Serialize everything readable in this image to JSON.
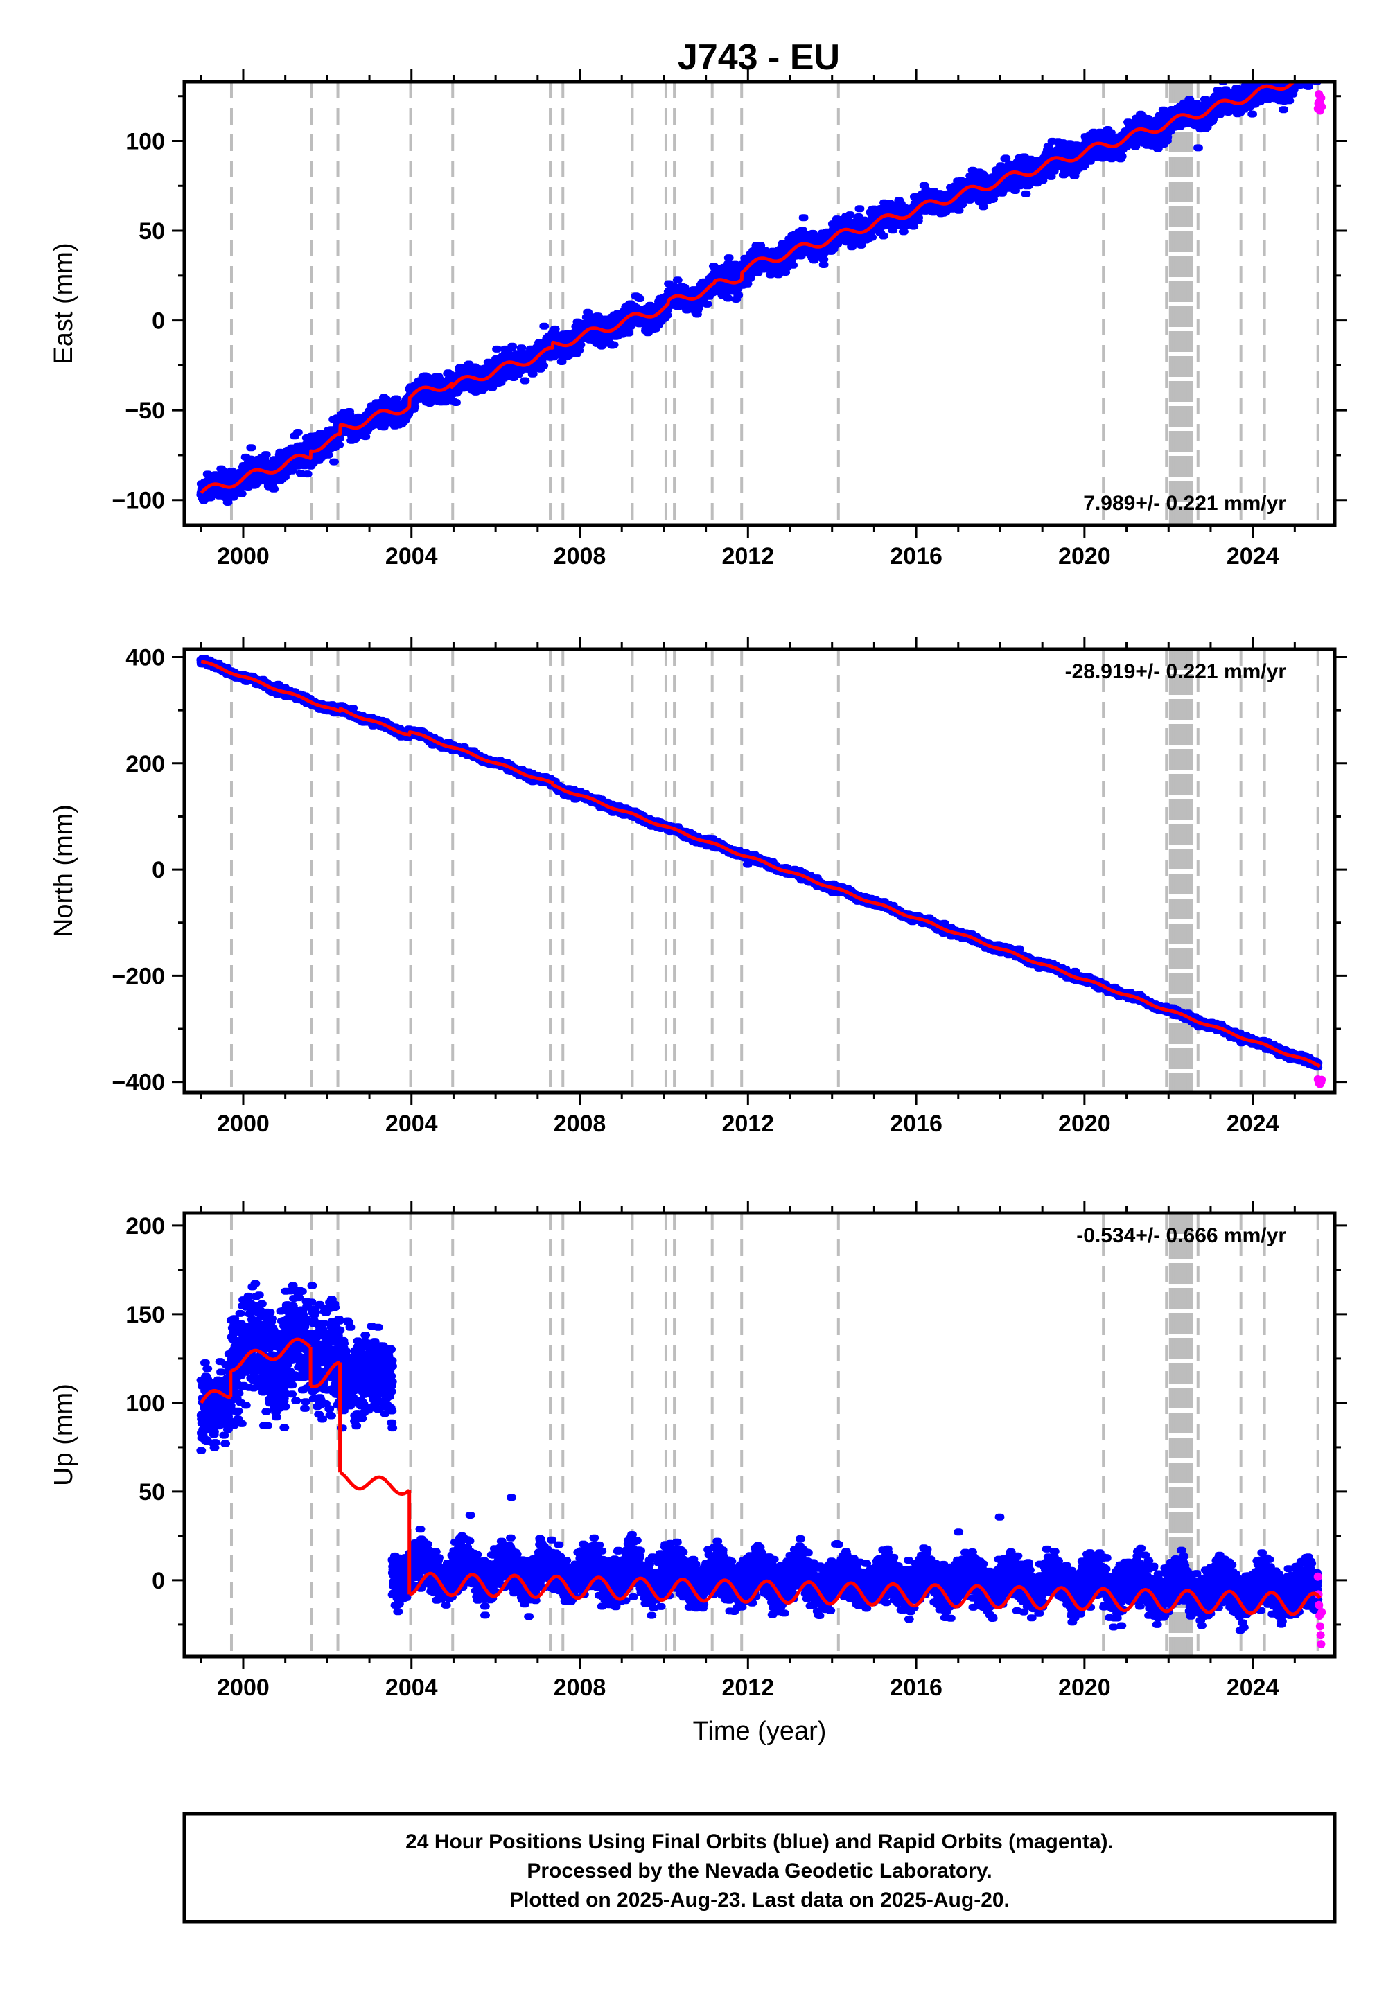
{
  "title": "J743 - EU",
  "footer": {
    "line1": "24 Hour Positions Using Final Orbits (blue) and Rapid Orbits (magenta).",
    "line2": "Processed by the Nevada Geodetic Laboratory.",
    "line3": "Plotted on 2025-Aug-23. Last data on 2025-Aug-20."
  },
  "colors": {
    "final_orbits": "#0000ff",
    "rapid_orbits": "#ff00ff",
    "model_fit": "#ff0000",
    "event_lines": "#bdbdbd",
    "axes": "#000000"
  },
  "chart_data": [
    {
      "type": "scatter",
      "panel": "east",
      "ylabel": "East (mm)",
      "xlabel": "",
      "xlim": [
        1998.6,
        2025.95
      ],
      "ylim": [
        -114,
        133
      ],
      "x_ticks": [
        2000,
        2004,
        2008,
        2012,
        2016,
        2020,
        2024
      ],
      "y_ticks": [
        -100,
        -50,
        0,
        50,
        100
      ],
      "y_tick_labels": [
        "−100",
        "−50",
        "0",
        "50",
        "100"
      ],
      "rate_label": "7.989+/- 0.221 mm/yr",
      "rate_position": "bottom-right",
      "grid": false,
      "series": [
        {
          "kind": "final_orbits",
          "t_start": 1999.0,
          "t_end": 2025.55,
          "velocity_mm_yr": 7.989,
          "value_at_2000": -88,
          "seasonal_amplitude_mm": 2.5,
          "scatter_mm": 3.5,
          "steps": [
            [
              2001.6,
              4
            ],
            [
              2002.3,
              5
            ],
            [
              2003.95,
              5
            ],
            [
              2004.95,
              -2
            ],
            [
              2007.35,
              3
            ],
            [
              2009.3,
              0
            ],
            [
              2010.1,
              2
            ],
            [
              2011.2,
              1
            ],
            [
              2011.85,
              4
            ],
            [
              2014.2,
              0
            ],
            [
              2020.45,
              0
            ],
            [
              2022.0,
              0
            ],
            [
              2022.7,
              0
            ],
            [
              2023.7,
              0
            ],
            [
              2024.3,
              0
            ]
          ]
        },
        {
          "kind": "rapid_orbits",
          "t_start": 2025.55,
          "t_end": 2025.64,
          "values_mm": [
            118,
            121,
            126,
            122,
            117,
            120,
            124,
            119
          ]
        },
        {
          "kind": "model_fit",
          "line_width": 5
        }
      ]
    },
    {
      "type": "scatter",
      "panel": "north",
      "ylabel": "North (mm)",
      "xlabel": "",
      "xlim": [
        1998.6,
        2025.95
      ],
      "ylim": [
        -420,
        415
      ],
      "x_ticks": [
        2000,
        2004,
        2008,
        2012,
        2016,
        2020,
        2024
      ],
      "y_ticks": [
        -400,
        -200,
        0,
        200,
        400
      ],
      "y_tick_labels": [
        "−400",
        "−200",
        "0",
        "200",
        "400"
      ],
      "rate_label": "-28.919+/- 0.221 mm/yr",
      "rate_position": "top-right",
      "grid": false,
      "series": [
        {
          "kind": "final_orbits",
          "t_start": 1999.0,
          "t_end": 2025.55,
          "velocity_mm_yr": -28.919,
          "value_at_2000": 363,
          "seasonal_amplitude_mm": 2,
          "scatter_mm": 3,
          "steps": [
            [
              2002.3,
              5
            ],
            [
              2003.95,
              6
            ],
            [
              2007.35,
              -3
            ]
          ]
        },
        {
          "kind": "rapid_orbits",
          "t_start": 2025.55,
          "t_end": 2025.64,
          "values_mm": [
            -395,
            -398,
            -402,
            -399,
            -404,
            -397,
            -400,
            -396
          ]
        },
        {
          "kind": "model_fit",
          "line_width": 5
        }
      ]
    },
    {
      "type": "scatter",
      "panel": "up",
      "ylabel": "Up (mm)",
      "xlabel": "Time (year)",
      "xlim": [
        1998.6,
        2025.95
      ],
      "ylim": [
        -43,
        207
      ],
      "x_ticks": [
        2000,
        2004,
        2008,
        2012,
        2016,
        2020,
        2024
      ],
      "y_ticks": [
        0,
        50,
        100,
        150,
        200
      ],
      "y_tick_labels": [
        "0",
        "50",
        "100",
        "150",
        "200"
      ],
      "rate_label": "-0.534+/- 0.666 mm/yr",
      "rate_position": "top-right",
      "grid": false,
      "series": [
        {
          "kind": "final_orbits",
          "segments": [
            {
              "t_start": 1999.0,
              "t_end": 1999.7,
              "mean_mm": 100,
              "trend_mm_yr": 12,
              "scatter_mm": 10
            },
            {
              "t_start": 1999.7,
              "t_end": 2001.6,
              "mean_mm": 128,
              "trend_mm_yr": 0,
              "scatter_mm": 14,
              "seasonal_amplitude_mm": 8
            },
            {
              "t_start": 2001.6,
              "t_end": 2002.3,
              "mean_mm": 127,
              "trend_mm_yr": 0,
              "scatter_mm": 14
            },
            {
              "t_start": 2002.3,
              "t_end": 2003.55,
              "mean_mm": 115,
              "trend_mm_yr": 0,
              "scatter_mm": 11
            },
            {
              "t_start": 2003.55,
              "t_end": 2025.55,
              "mean_mm": 0,
              "trend_mm_yr": -0.534,
              "scatter_mm": 6,
              "seasonal_amplitude_mm": 6
            }
          ]
        },
        {
          "kind": "rapid_orbits",
          "t_start": 2025.55,
          "t_end": 2025.64,
          "values_mm": [
            2,
            -8,
            -14,
            -20,
            -26,
            -31,
            -36,
            -18
          ]
        },
        {
          "kind": "model_fit",
          "line_width": 5,
          "pre_2004_segments": [
            {
              "t_start": 1999.0,
              "t_end": 1999.7,
              "value_start_mm": 100,
              "value_end_mm": 107
            },
            {
              "t_start": 1999.7,
              "t_end": 2001.6,
              "value_start_mm": 122,
              "value_end_mm": 134
            },
            {
              "t_start": 2001.6,
              "t_end": 2002.3,
              "value_start_mm": 112,
              "value_end_mm": 119
            },
            {
              "t_start": 2002.3,
              "t_end": 2003.95,
              "value_start_mm": 57,
              "value_end_mm": 52
            }
          ],
          "post_2004": {
            "value_at_2004_mm": -2,
            "trend_mm_yr": -0.534,
            "seasonal_amplitude_mm": 6
          }
        }
      ]
    }
  ],
  "event_lines": {
    "dashed_years": [
      1999.72,
      2001.62,
      2002.25,
      2003.98,
      2004.98,
      2007.3,
      2007.6,
      2009.25,
      2010.05,
      2010.25,
      2011.15,
      2011.85,
      2014.15,
      2020.45,
      2021.95,
      2022.7,
      2023.72,
      2024.28,
      2025.55
    ],
    "dense_band_years": [
      2022.05,
      2022.12,
      2022.18,
      2022.24,
      2022.3,
      2022.36,
      2022.42,
      2022.48,
      2022.54
    ]
  }
}
